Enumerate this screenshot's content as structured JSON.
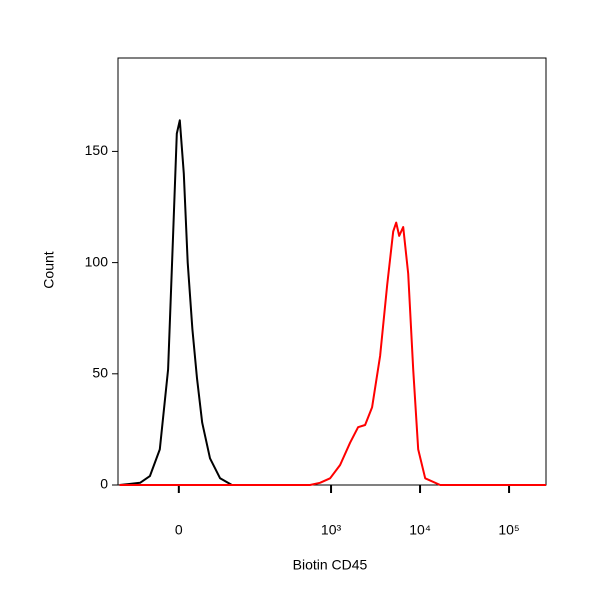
{
  "chart_data": {
    "type": "line",
    "x_label": "Biotin CD45",
    "y_label": "Count",
    "xscale": "asinh",
    "xlim": [
      -90,
      260000
    ],
    "ylim": [
      0,
      192
    ],
    "xticks": [
      0,
      {
        "value": 1000,
        "label": "10³"
      },
      {
        "value": 10000,
        "label": "10⁴"
      },
      {
        "value": 100000,
        "label": "10⁵"
      }
    ],
    "yticks": [
      0,
      50,
      100,
      150
    ],
    "series": [
      {
        "color": "#000000",
        "x": [
          -86,
          -46,
          -32,
          -20,
          -11,
          -6,
          -2,
          1,
          5,
          9,
          14,
          19,
          25,
          35,
          50,
          72
        ],
        "values": [
          0,
          1,
          4,
          16,
          52,
          110,
          158,
          164,
          140,
          100,
          70,
          48,
          28,
          12,
          3,
          0
        ]
      },
      {
        "color": "#ff0000",
        "x": [
          -86,
          580,
          752,
          975,
          1264,
          1636,
          2012,
          2414,
          2894,
          3561,
          4271,
          4988,
          5394,
          5827,
          6462,
          7359,
          8373,
          9532,
          11427,
          16848,
          260000
        ],
        "values": [
          0,
          0,
          1,
          3,
          9,
          19,
          26,
          27,
          35,
          58,
          90,
          114,
          118,
          112,
          116,
          95,
          52,
          16,
          3,
          0,
          0
        ]
      }
    ]
  }
}
